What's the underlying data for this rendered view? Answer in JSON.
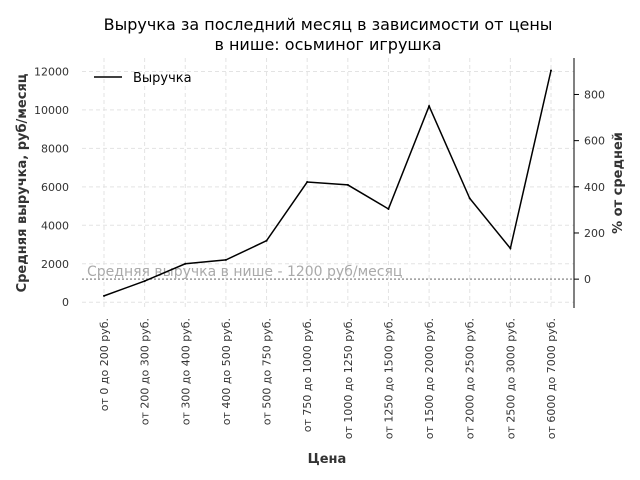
{
  "chart_data": {
    "type": "line",
    "title_line1": "Выручка за последний месяц в зависимости от цены",
    "title_line2": "в нише: осьминог игрушка",
    "xlabel": "Цена",
    "ylabel": "Средняя выручка, руб/месяц",
    "ylabel_right": "% от средней",
    "categories": [
      "от 0 до 200 руб.",
      "от 200 до 300 руб.",
      "от 300 до 400 руб.",
      "от 400 до 500 руб.",
      "от 500 до 750 руб.",
      "от 750 до 1000 руб.",
      "от 1000 до 1250 руб.",
      "от 1250 до 1500 руб.",
      "от 1500 до 2000 руб.",
      "от 2000 до 2500 руб.",
      "от 2500 до 3000 руб.",
      "от 6000 до 7000 руб."
    ],
    "series": [
      {
        "name": "Выручка",
        "color": "#000000",
        "values": [
          330,
          1100,
          2000,
          2200,
          3200,
          6250,
          6100,
          4850,
          10200,
          5400,
          2800,
          12050
        ]
      }
    ],
    "ylim": [
      -300,
      12700
    ],
    "yticks": [
      0,
      2000,
      4000,
      6000,
      8000,
      10000,
      12000
    ],
    "ylim_right": [
      -125,
      958
    ],
    "yticks_right": [
      0,
      200,
      400,
      600,
      800
    ],
    "average_line": {
      "value": 1200,
      "label": "Средняя выручка в нише - 1200 руб/месяц",
      "color": "#999999"
    },
    "grid": true,
    "legend_position": "top-left"
  }
}
